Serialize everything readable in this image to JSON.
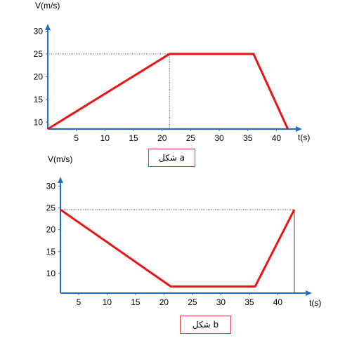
{
  "chart_data": [
    {
      "type": "line",
      "ylabel": "V(m/s)",
      "xlabel": "t(s)",
      "caption": "شكل a",
      "xticks": [
        5,
        10,
        15,
        20,
        25,
        30,
        35,
        40
      ],
      "yticks": [
        10,
        15,
        20,
        25,
        30
      ],
      "xlim": [
        0,
        44.5
      ],
      "ylim": [
        8.5,
        31
      ],
      "series": [
        {
          "color": "#ee1111",
          "x": [
            0,
            21.3,
            36,
            42
          ],
          "y": [
            8.5,
            25,
            25,
            8.5
          ]
        }
      ],
      "reference_lines": {
        "y": 25,
        "x": 21.3
      },
      "grid": false
    },
    {
      "type": "line",
      "ylabel": "V(m/s)",
      "xlabel": "t(s)",
      "caption": "شكل b",
      "xticks": [
        5,
        10,
        15,
        20,
        25,
        30,
        35,
        40
      ],
      "yticks": [
        10,
        15,
        20,
        25,
        30
      ],
      "xlim": [
        1.8,
        46
      ],
      "ylim": [
        5.5,
        31.5
      ],
      "series": [
        {
          "color": "#ee1111",
          "x": [
            1.8,
            21.2,
            36,
            42.9
          ],
          "y": [
            24.6,
            7,
            7,
            24.6
          ]
        }
      ],
      "reference_lines": {
        "y": 24.6,
        "x": 42.9
      },
      "grid": false
    }
  ],
  "axis_color": "#1f6fc5",
  "line_color": "#ee1111"
}
